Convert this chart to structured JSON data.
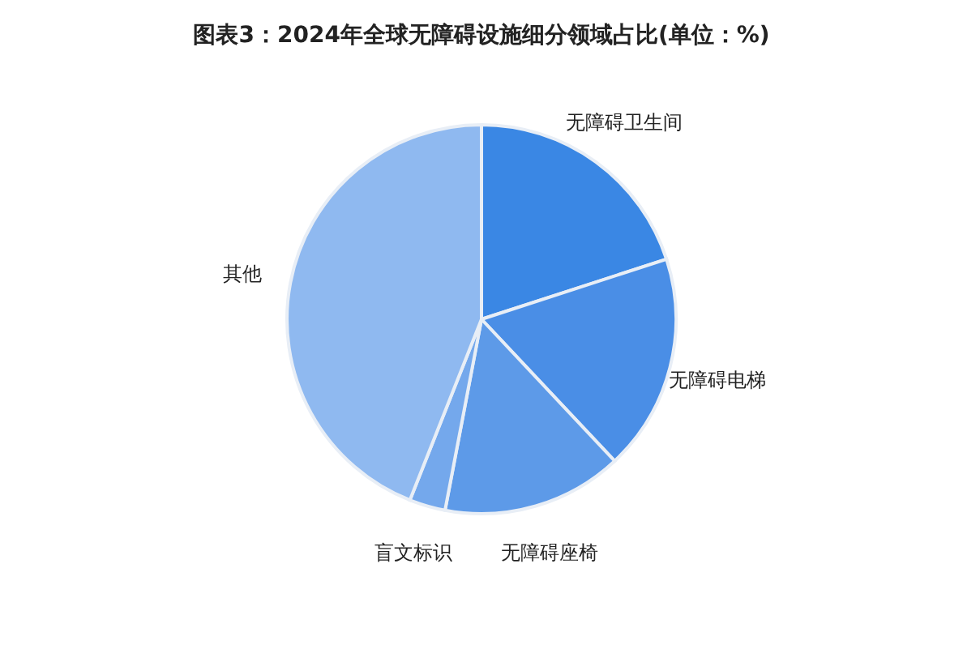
{
  "chart_data": {
    "type": "pie",
    "title": "图表3：2024年全球无障碍设施细分领域占比(单位：%)",
    "categories": [
      "无障碍卫生间",
      "无障碍电梯",
      "无障碍座椅",
      "盲文标识",
      "其他"
    ],
    "values": [
      20,
      18,
      15,
      3,
      44
    ],
    "colors": [
      "#3a87e4",
      "#4a8ee6",
      "#5d9ae8",
      "#74a8ec",
      "#8fb9f0"
    ]
  }
}
